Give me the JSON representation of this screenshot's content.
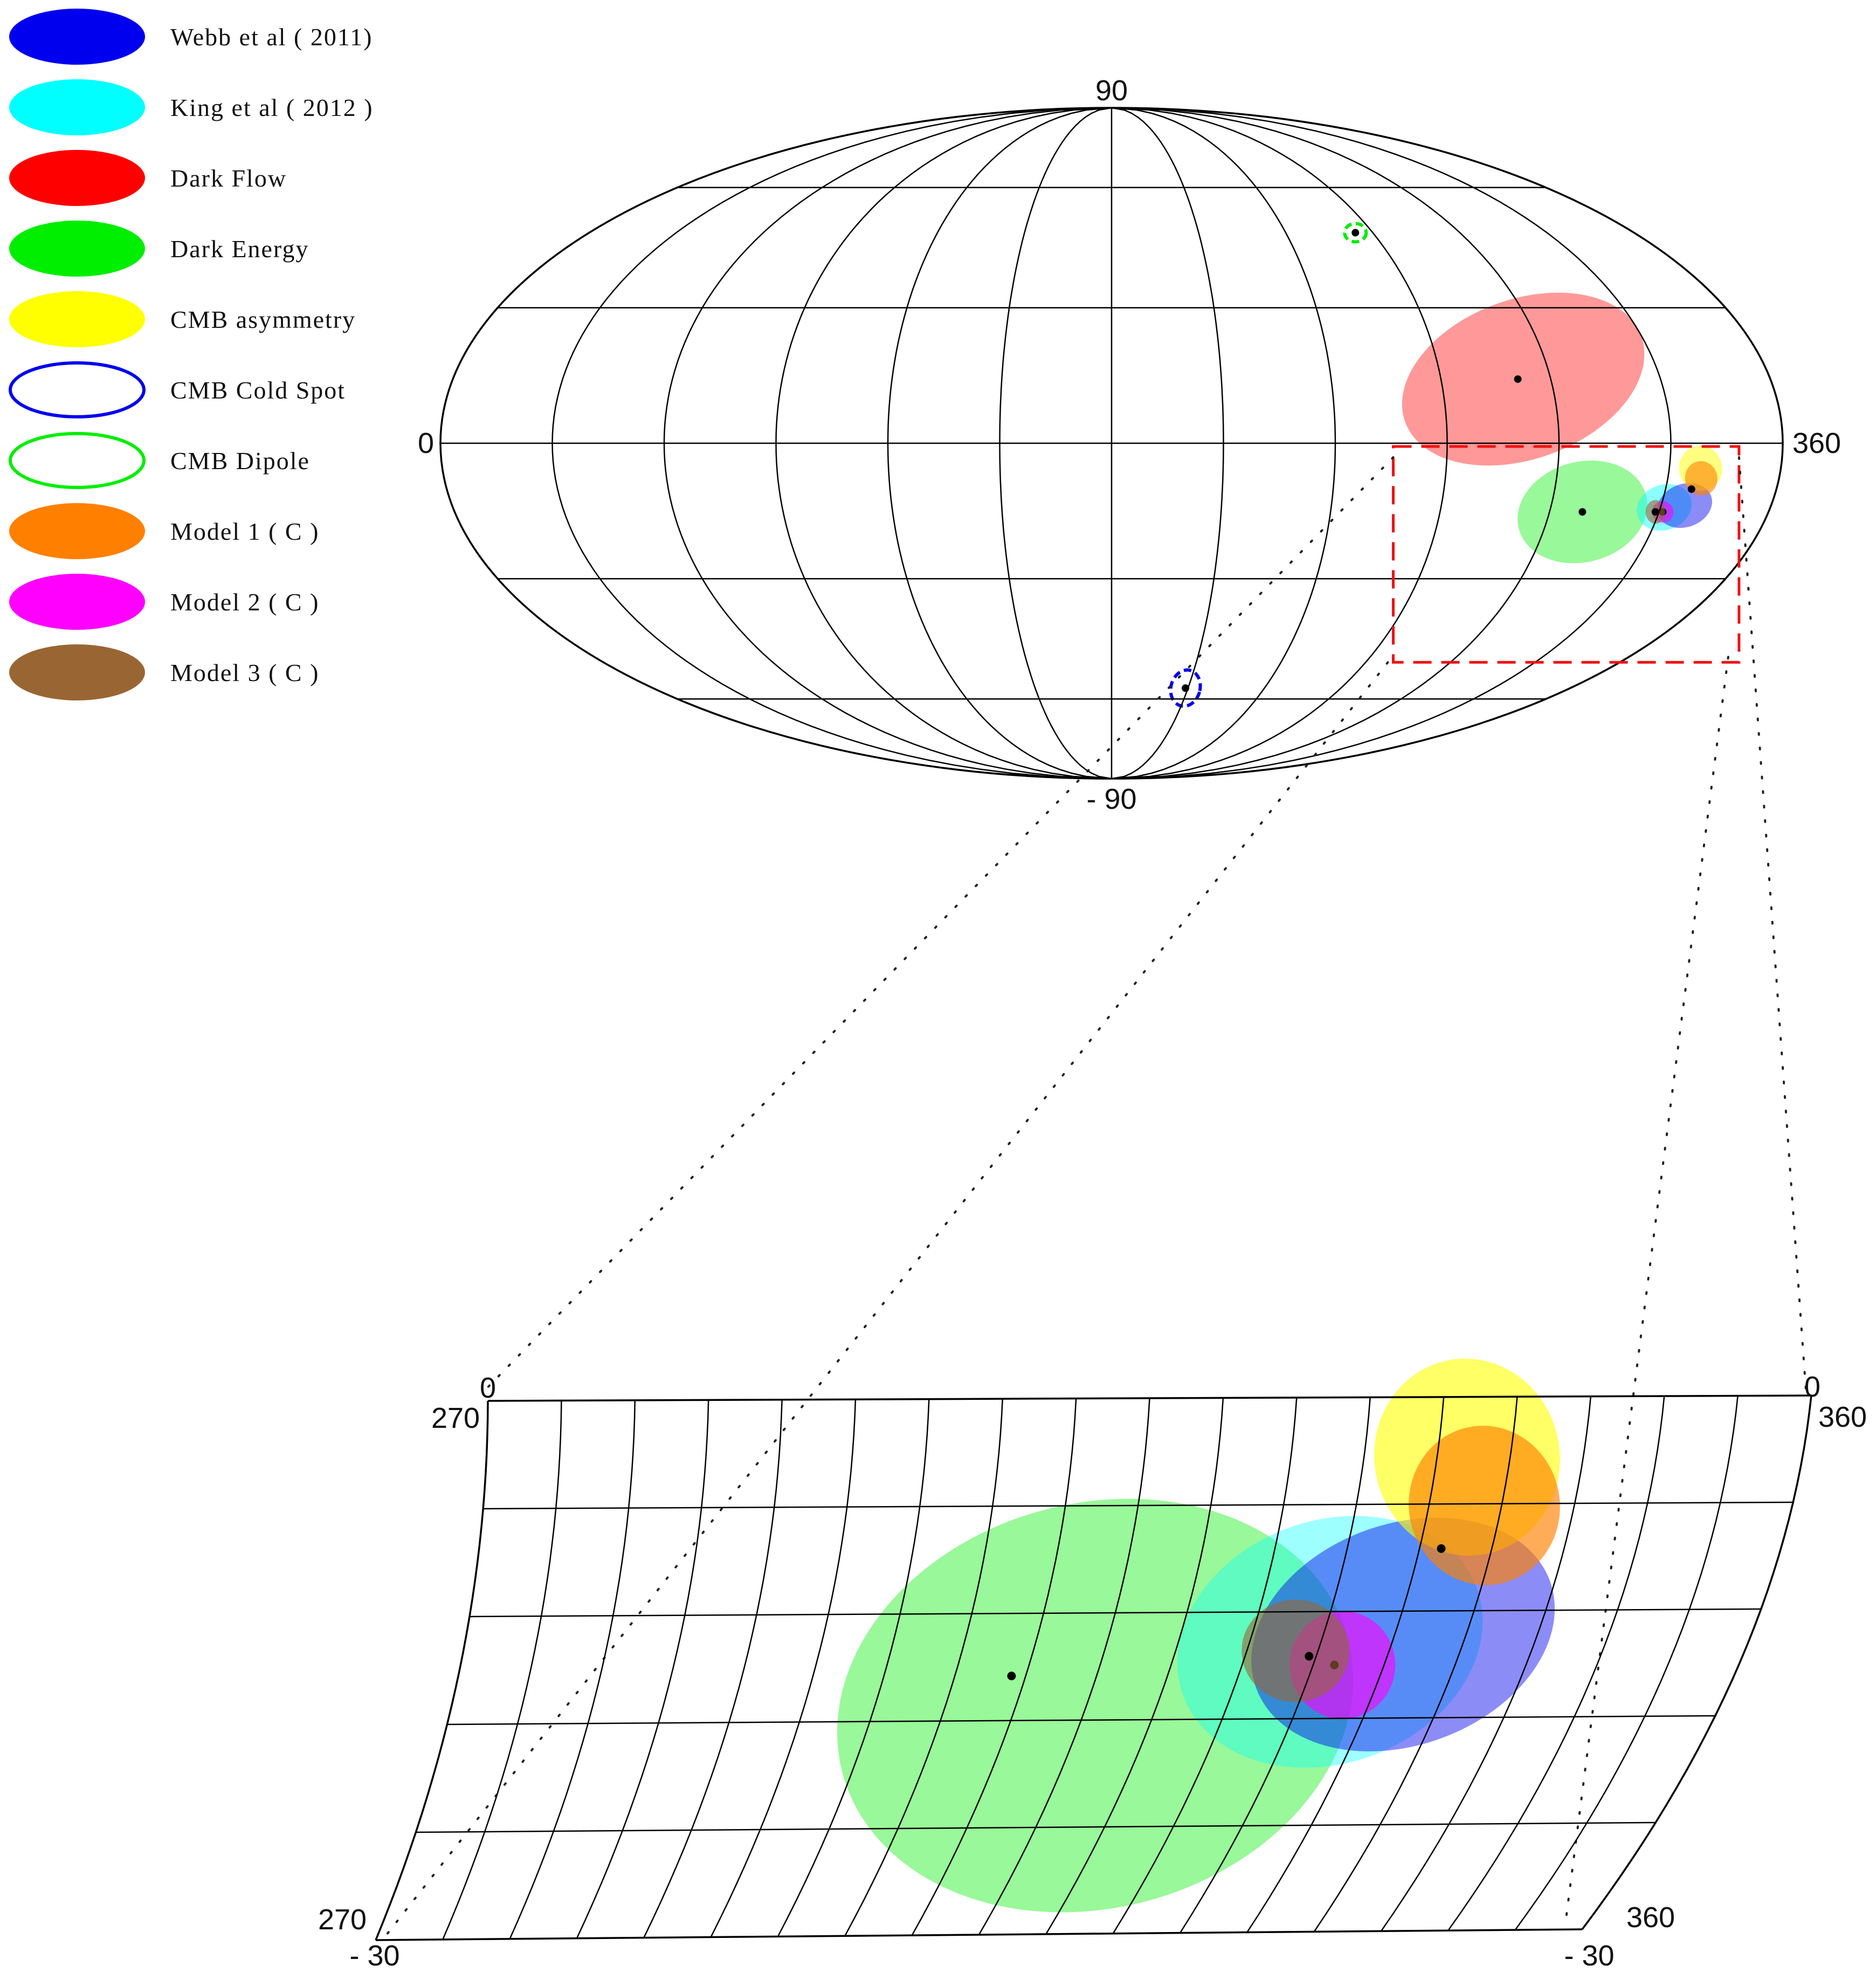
{
  "legend": [
    {
      "label": "Webb   et   al  ( 2011)",
      "color": "#0000ee",
      "style": "filled"
    },
    {
      "label": "King   et   al  ( 2012 )",
      "color": "#00ffff",
      "style": "filled"
    },
    {
      "label": "Dark   Flow",
      "color": "#ff0000",
      "style": "filled"
    },
    {
      "label": "Dark   Energy",
      "color": "#00ee00",
      "style": "filled"
    },
    {
      "label": "CMB   asymmetry",
      "color": "#ffff00",
      "style": "filled"
    },
    {
      "label": "CMB   Cold   Spot",
      "color": "#0000ee",
      "style": "outline"
    },
    {
      "label": "CMB   Dipole",
      "color": "#00ee00",
      "style": "outline"
    },
    {
      "label": "Model   1   ( C )",
      "color": "#ff8000",
      "style": "filled"
    },
    {
      "label": "Model   2   ( C )",
      "color": "#ff00ff",
      "style": "filled"
    },
    {
      "label": "Model   3   ( C )",
      "color": "#996633",
      "style": "filled"
    }
  ],
  "chart_data": [
    {
      "type": "scatter",
      "title": "",
      "projection": "mollweide",
      "xlabel": "",
      "ylabel": "",
      "xlim": [
        0,
        360
      ],
      "ylim": [
        -90,
        90
      ],
      "labels": {
        "top": "90",
        "bottom": "- 90",
        "left": "0",
        "right": "360"
      },
      "grid": true,
      "zoom_box": {
        "lon": [
          270,
          360
        ],
        "lat": [
          -30,
          0
        ]
      },
      "regions": [
        {
          "name": "Dark Flow",
          "lon": 291,
          "lat": 14,
          "color": "#ff0000",
          "fill": true
        },
        {
          "name": "CMB Dipole",
          "lon": 264,
          "lat": 48,
          "color": "#00ee00",
          "fill": false
        },
        {
          "name": "CMB Cold Spot",
          "lon": 209,
          "lat": -57,
          "color": "#0000ee",
          "fill": false
        },
        {
          "name": "Dark Energy",
          "lon": 309,
          "lat": -15,
          "color": "#00ee00",
          "fill": true
        },
        {
          "name": "King et al (2012)",
          "lon": 331,
          "lat": -14,
          "color": "#00ffff",
          "fill": true
        },
        {
          "name": "Webb et al (2011)",
          "lon": 334,
          "lat": -13,
          "color": "#0000ee",
          "fill": true
        },
        {
          "name": "CMB asymmetry",
          "lon": 337,
          "lat": -9,
          "color": "#ffff00",
          "fill": true
        },
        {
          "name": "Model 1 (C)",
          "lon": 337,
          "lat": -10,
          "color": "#ff8000",
          "fill": true
        },
        {
          "name": "Model 2 (C)",
          "lon": 331,
          "lat": -15,
          "color": "#ff00ff",
          "fill": true
        },
        {
          "name": "Model 3 (C)",
          "lon": 329,
          "lat": -15,
          "color": "#996633",
          "fill": true
        }
      ]
    },
    {
      "type": "scatter",
      "title": "",
      "projection": "mollweide-zoom",
      "xlabel": "",
      "ylabel": "",
      "xlim": [
        270,
        360
      ],
      "ylim": [
        -30,
        0
      ],
      "labels": {
        "top_left_lat": "0",
        "top_left_lon": "270",
        "top_right_lat": "0",
        "top_right_lon": "360",
        "bottom_left_lon": "270",
        "bottom_left_lat": "- 30",
        "bottom_right_lon": "360",
        "bottom_right_lat": "- 30"
      },
      "grid": true,
      "regions": [
        {
          "name": "Dark Energy",
          "lon": 309,
          "lat": -15.5,
          "color": "#00ee00"
        },
        {
          "name": "King et al (2012)",
          "lon": 330,
          "lat": -14,
          "color": "#00ffff"
        },
        {
          "name": "Webb et al (2011)",
          "lon": 333,
          "lat": -13,
          "color": "#0000ee"
        },
        {
          "name": "CMB asymmetry",
          "lon": 336,
          "lat": -7,
          "color": "#ffff00"
        },
        {
          "name": "Model 1 (C)",
          "lon": 336.5,
          "lat": -8.5,
          "color": "#ff8000"
        },
        {
          "name": "Model 2 (C)",
          "lon": 331.5,
          "lat": -15,
          "color": "#ff00ff"
        },
        {
          "name": "Model 3 (C)",
          "lon": 329.5,
          "lat": -14.5,
          "color": "#996633"
        }
      ]
    }
  ]
}
